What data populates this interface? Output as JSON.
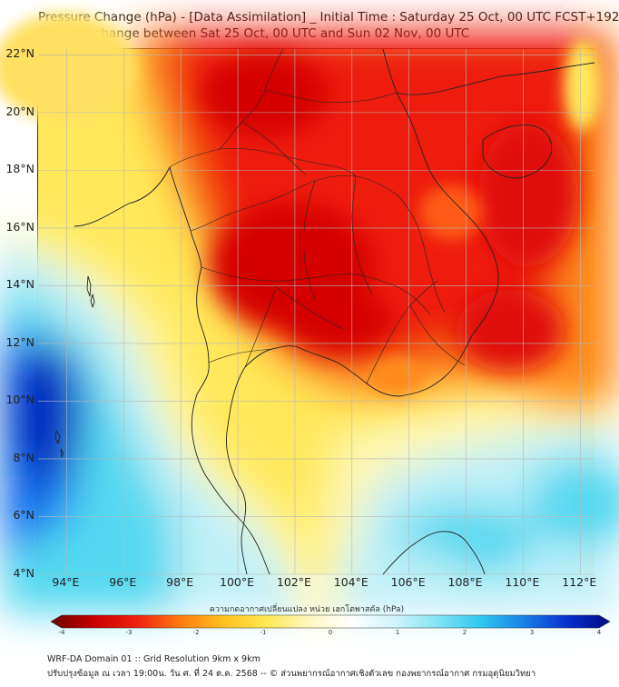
{
  "title": {
    "line1": "Pressure Change (hPa) - [Data Assimilation] _ Initial Time : Saturday 25 Oct, 00 UTC FCST+192",
    "line2": "Pressure change between Sat 25 Oct, 00 UTC and Sun 02 Nov, 00 UTC"
  },
  "map": {
    "lat_ticks": [
      "22°N",
      "20°N",
      "18°N",
      "16°N",
      "14°N",
      "12°N",
      "10°N",
      "8°N",
      "6°N",
      "4°N"
    ],
    "lon_ticks": [
      "94°E",
      "96°E",
      "98°E",
      "100°E",
      "102°E",
      "104°E",
      "106°E",
      "108°E",
      "110°E",
      "112°E"
    ],
    "extent": {
      "lon_min": 93.0,
      "lon_max": 112.5,
      "lat_min": 4.0,
      "lat_max": 22.2
    },
    "colors": {
      "deep_red": "#d40000",
      "red": "#ee1a10",
      "orange": "#ff8c1a",
      "yellow": "#ffe85a",
      "light_yellow": "#fff7b0",
      "white": "#f4f8f4",
      "light_cyan": "#bff0f8",
      "cyan": "#52d8f0",
      "blue": "#1070f0",
      "deep_blue": "#0020c0"
    }
  },
  "colorbar": {
    "label": "ความกดอากาศเปลี่ยนแปลง หน่วย เฮกโตพาสคัล (hPa)",
    "ticks": [
      "-4",
      "-3",
      "-2",
      "-1",
      "0",
      "1",
      "2",
      "3",
      "4"
    ],
    "min": -4,
    "max": 4,
    "stops": [
      "#6a0000",
      "#c80000",
      "#f02010",
      "#ff7a10",
      "#ffc020",
      "#ffe850",
      "#fff8c0",
      "#ffffff",
      "#d0f4fa",
      "#80e4f4",
      "#30c8f0",
      "#1880e8",
      "#0830d0",
      "#000a80"
    ]
  },
  "footer": {
    "line1": "WRF-DA Domain 01 :: Grid Resolution 9km x 9km",
    "line2": "ปรับปรุงข้อมูล ณ เวลา 19:00น. วัน ศ. ที่ 24 ต.ค. 2568 -- © ส่วนพยากรณ์อากาศเชิงตัวเลข กองพยากรณ์อากาศ กรมอุตุนิยมวิทยา"
  }
}
